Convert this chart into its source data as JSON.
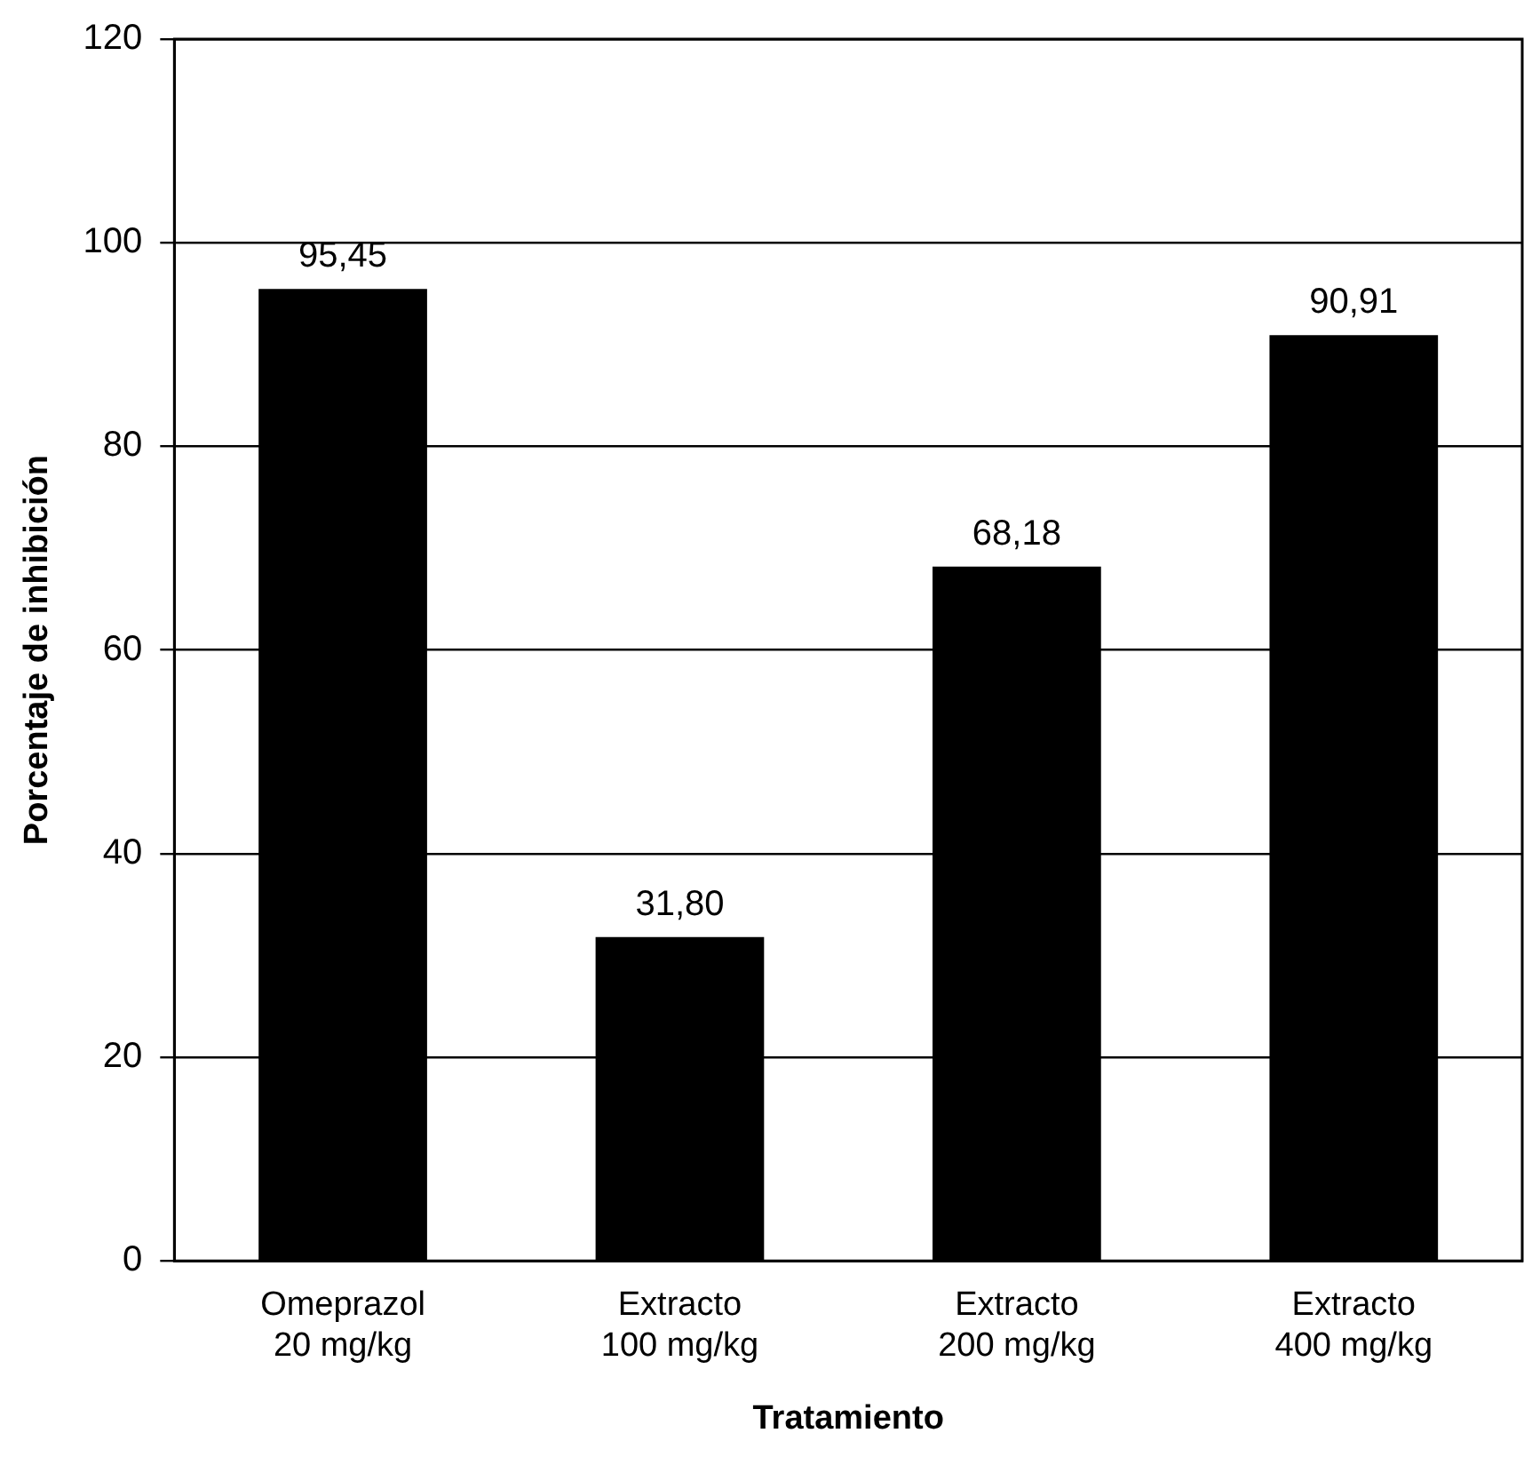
{
  "chart_data": {
    "type": "bar",
    "xlabel": "Tratamiento",
    "ylabel": "Porcentaje de inhibición",
    "categories": [
      "Omeprazol 20 mg/kg",
      "Extracto 100 mg/kg",
      "Extracto 200 mg/kg",
      "Extracto 400 mg/kg"
    ],
    "values": [
      95.45,
      31.8,
      68.18,
      90.91
    ],
    "value_labels": [
      "95,45",
      "31,80",
      "68,18",
      "90,91"
    ],
    "color": "#000000",
    "ylim": [
      0,
      120
    ],
    "yticks": [
      0,
      20,
      40,
      60,
      80,
      100,
      120
    ],
    "grid": "y",
    "legend": false
  }
}
